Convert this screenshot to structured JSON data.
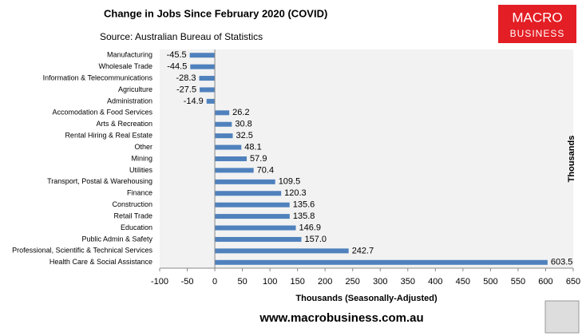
{
  "chart_data": {
    "type": "hbar",
    "title": "Change in Jobs Since February 2020 (COVID)",
    "subtitle": "Source: Australian Bureau of Statistics",
    "logo": [
      "MACRO",
      "BUSINESS"
    ],
    "footer": "www.macrobusiness.com.au",
    "x_label": "Thousands (Seasonally-Adjusted)",
    "y2_label": "Thousands",
    "categories": [
      "Manufacturing",
      "Wholesale Trade",
      "Information & Telecommunications",
      "Agriculture",
      "Administration",
      "Accomodation & Food Services",
      "Arts & Recreation",
      "Rental Hiring & Real Estate",
      "Other",
      "Mining",
      "Utilities",
      "Transport, Postal & Warehousing",
      "Finance",
      "Construction",
      "Retail Trade",
      "Education",
      "Public Admin & Safety",
      "Professional, Scientific & Technical Services",
      "Health Care & Social Assistance"
    ],
    "values": [
      -45.5,
      -44.5,
      -28.3,
      -27.5,
      -14.9,
      26.2,
      30.8,
      32.5,
      48.1,
      57.9,
      70.4,
      109.5,
      120.3,
      135.6,
      135.8,
      146.9,
      157.0,
      242.7,
      603.5
    ],
    "value_labels": [
      "-45.5",
      "-44.5",
      "-28.3",
      "-27.5",
      "-14.9",
      "26.2",
      "30.8",
      "32.5",
      "48.1",
      "57.9",
      "70.4",
      "109.5",
      "120.3",
      "135.6",
      "135.8",
      "146.9",
      "157.0",
      "242.7",
      "603.5"
    ],
    "color": "#4f81bd",
    "xlim": [
      -100,
      650
    ],
    "xticks": [
      -100,
      -50,
      0,
      50,
      100,
      150,
      200,
      250,
      300,
      350,
      400,
      450,
      500,
      550,
      600,
      650
    ]
  }
}
